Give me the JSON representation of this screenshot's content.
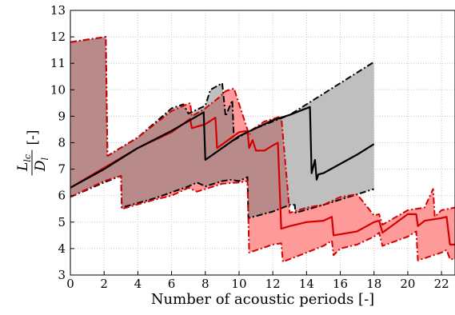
{
  "chart_data": {
    "type": "area",
    "xlabel": "Number of acoustic periods [-]",
    "ylabel": {
      "numerator": "L",
      "num_sub": "lc",
      "denominator": "D",
      "den_sub": "l",
      "unit": "[-]"
    },
    "xlim": [
      0,
      22.8
    ],
    "ylim": [
      3,
      13
    ],
    "xticks": [
      0,
      2,
      4,
      6,
      8,
      10,
      12,
      14,
      16,
      18,
      20,
      22
    ],
    "yticks": [
      3,
      4,
      5,
      6,
      7,
      8,
      9,
      10,
      11,
      12,
      13
    ],
    "grid": true,
    "colors": {
      "black_fill": "#bfbfbf",
      "black_line": "#000000",
      "red_fill": "#ff9a9a",
      "red_line": "#d40000",
      "overlap_fill": "#b88a8a",
      "grid": "#c8c8c8"
    },
    "series": [
      {
        "style": "black",
        "mean": {
          "x": [
            0,
            2,
            4,
            6,
            7.9,
            8.0,
            9,
            10,
            11,
            12,
            13,
            14.2,
            14.3,
            14.5,
            14.6,
            14.7,
            15,
            16,
            17,
            18
          ],
          "y": [
            6.3,
            7.0,
            7.8,
            8.45,
            9.15,
            7.35,
            7.8,
            8.25,
            8.55,
            8.85,
            9.05,
            9.35,
            6.85,
            7.35,
            6.6,
            6.8,
            6.85,
            7.2,
            7.55,
            7.95
          ]
        },
        "upper": {
          "x": [
            0,
            2.1,
            2.2,
            4,
            6,
            6.7,
            7,
            8,
            8.3,
            9.0,
            9.2,
            9.6,
            9.7,
            10.5,
            11,
            12,
            13,
            18
          ],
          "y": [
            11.8,
            12.0,
            7.5,
            8.2,
            9.3,
            9.45,
            9.1,
            9.4,
            10.0,
            10.25,
            9.0,
            9.6,
            8.1,
            8.4,
            8.55,
            8.8,
            9.05,
            11.05
          ]
        },
        "lower": {
          "x": [
            0,
            2,
            3,
            3.05,
            5,
            7,
            7.5,
            8,
            9,
            9.5,
            10,
            10.5,
            10.55,
            12,
            13,
            13.3,
            13.35,
            15,
            18
          ],
          "y": [
            5.95,
            6.5,
            6.75,
            5.55,
            5.9,
            6.35,
            6.5,
            6.35,
            6.55,
            6.6,
            6.55,
            6.7,
            5.15,
            5.4,
            5.65,
            5.65,
            5.35,
            5.65,
            6.25
          ]
        }
      },
      {
        "style": "red",
        "mean": {
          "x": [
            0,
            2,
            4,
            6,
            7.1,
            7.2,
            8,
            8.6,
            8.7,
            10,
            10.5,
            10.6,
            10.8,
            11.0,
            11.5,
            12,
            12.3,
            12.5,
            13,
            14,
            15,
            15.5,
            15.6,
            17,
            18,
            18.3,
            18.5,
            20,
            20.5,
            20.6,
            21,
            22,
            22.3,
            22.5,
            22.8
          ],
          "y": [
            6.3,
            7.05,
            7.8,
            8.4,
            8.9,
            8.55,
            8.7,
            8.95,
            7.8,
            8.4,
            8.45,
            7.8,
            8.1,
            7.7,
            7.7,
            7.9,
            8.0,
            4.75,
            4.85,
            5.0,
            5.05,
            5.2,
            4.5,
            4.65,
            5.0,
            5.05,
            4.6,
            5.3,
            5.3,
            4.85,
            5.05,
            5.15,
            5.2,
            4.15,
            4.15
          ]
        },
        "upper": {
          "x": [
            0,
            2.1,
            2.2,
            4,
            6,
            7.1,
            7.2,
            8,
            8.8,
            9.2,
            9.7,
            10.6,
            10.8,
            11.5,
            12.5,
            13,
            14,
            15,
            16,
            17,
            18,
            18.3,
            18.5,
            20,
            21,
            21.5,
            21.6,
            22,
            22.8
          ],
          "y": [
            11.8,
            12.0,
            7.5,
            8.2,
            9.2,
            9.5,
            9.0,
            9.3,
            9.7,
            9.95,
            10.05,
            8.3,
            8.5,
            8.8,
            9.0,
            5.35,
            5.55,
            5.65,
            5.95,
            6.05,
            5.25,
            5.3,
            4.9,
            5.45,
            5.55,
            6.25,
            5.2,
            5.45,
            5.55
          ]
        },
        "lower": {
          "x": [
            0,
            2,
            3,
            3.05,
            5,
            6,
            7,
            7.5,
            8,
            9,
            10,
            10.5,
            10.6,
            12,
            12.5,
            12.6,
            14,
            15,
            15.5,
            15.6,
            16,
            17,
            18,
            18.3,
            18.5,
            20,
            20.5,
            20.6,
            22,
            22.3,
            22.5,
            22.8
          ],
          "y": [
            5.95,
            6.55,
            6.75,
            5.5,
            5.85,
            6.0,
            6.3,
            6.15,
            6.25,
            6.45,
            6.5,
            6.55,
            3.85,
            4.15,
            4.2,
            3.5,
            3.85,
            4.1,
            4.3,
            3.75,
            4.0,
            4.15,
            4.45,
            4.6,
            4.1,
            4.45,
            4.65,
            3.55,
            3.85,
            3.95,
            3.6,
            3.6
          ]
        }
      }
    ]
  }
}
